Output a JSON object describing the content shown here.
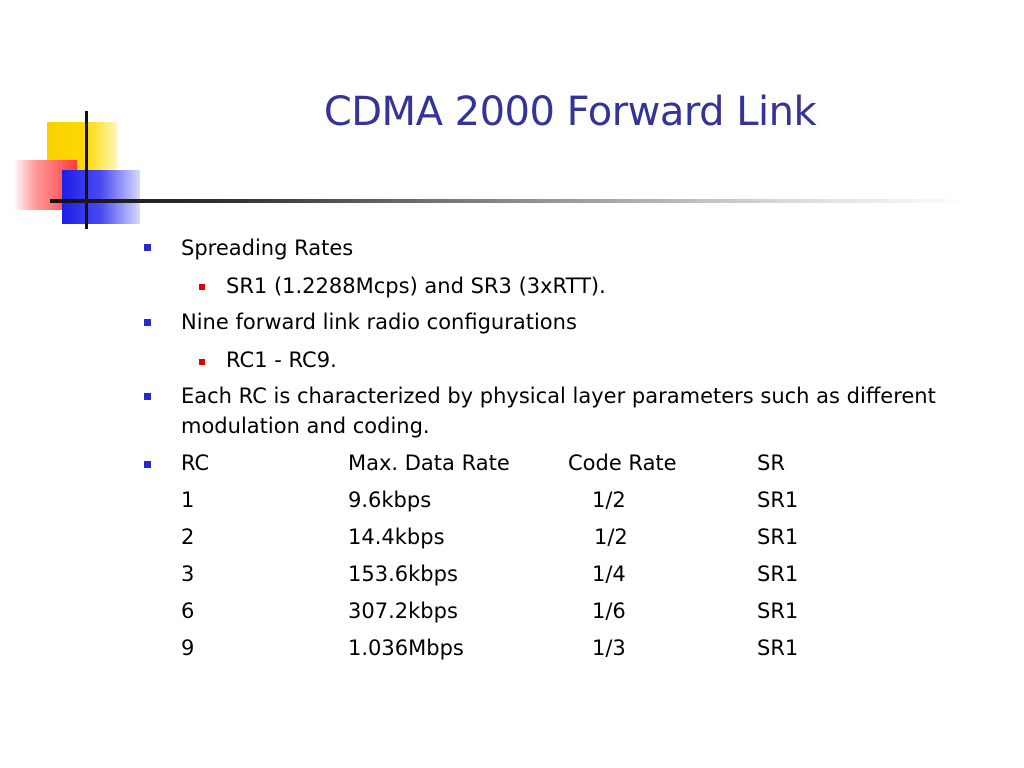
{
  "slide": {
    "title": "CDMA 2000 Forward Link",
    "bullets": [
      {
        "level": 1,
        "text": "Spreading Rates"
      },
      {
        "level": 2,
        "text": "SR1 (1.2288Mcps) and SR3 (3xRTT)."
      },
      {
        "level": 1,
        "text": "Nine forward link radio configurations"
      },
      {
        "level": 2,
        "text": "RC1 - RC9."
      },
      {
        "level": 1,
        "text_line1": "Each RC is characterized by physical layer parameters such as different",
        "text_line2": "modulation and coding."
      }
    ],
    "table": {
      "headers": [
        "RC",
        "Max. Data Rate",
        "Code Rate",
        "SR"
      ],
      "rows": [
        [
          "1",
          "9.6kbps",
          "1/2",
          "SR1"
        ],
        [
          "2",
          "14.4kbps",
          "1/2",
          "SR1"
        ],
        [
          "3",
          "153.6kbps",
          "1/4",
          "SR1"
        ],
        [
          "6",
          "307.2kbps",
          "1/6",
          "SR1"
        ],
        [
          "9",
          "1.036Mbps",
          "1/3",
          "SR1"
        ]
      ]
    }
  },
  "colors": {
    "title": "#333399",
    "level1_bullet": "#2a2acc",
    "level2_bullet": "#e00000"
  }
}
